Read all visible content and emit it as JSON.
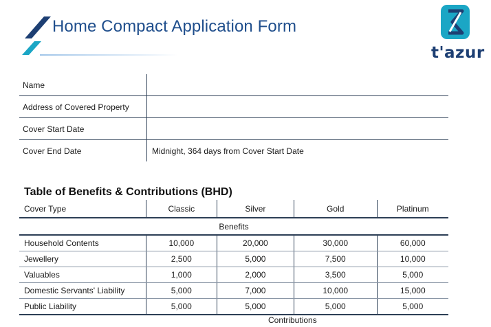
{
  "header": {
    "title": "Home Compact Application Form",
    "accent_dark": "#1d3f73",
    "accent_teal": "#1ba6c5"
  },
  "logo": {
    "text": "t'azur"
  },
  "form": {
    "rows": [
      {
        "label": "Name",
        "value": ""
      },
      {
        "label": "Address of Covered Property",
        "value": ""
      },
      {
        "label": "Cover Start Date",
        "value": ""
      },
      {
        "label": "Cover End Date",
        "value": "Midnight, 364 days from Cover Start Date"
      }
    ]
  },
  "benefits_table": {
    "title": "Table of Benefits & Contributions (BHD)",
    "columns": [
      "Cover Type",
      "Classic",
      "Silver",
      "Gold",
      "Platinum"
    ],
    "section_label": "Benefits",
    "rows": [
      {
        "label": "Household Contents",
        "values": [
          "10,000",
          "20,000",
          "30,000",
          "60,000"
        ]
      },
      {
        "label": "Jewellery",
        "values": [
          "2,500",
          "5,000",
          "7,500",
          "10,000"
        ]
      },
      {
        "label": "Valuables",
        "values": [
          "1,000",
          "2,000",
          "3,500",
          "5,000"
        ]
      },
      {
        "label": "Domestic Servants' Liability",
        "values": [
          "5,000",
          "7,000",
          "10,000",
          "15,000"
        ]
      },
      {
        "label": "Public Liability",
        "values": [
          "5,000",
          "5,000",
          "5,000",
          "5,000"
        ]
      }
    ],
    "next_section_label": "Contributions"
  }
}
